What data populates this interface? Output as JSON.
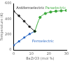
{
  "chart_data": {
    "type": "line",
    "x_label": "BaZrO3 (mol %)",
    "y_label": "Temperature (K)",
    "xlim": [
      0,
      30
    ],
    "xticks": [
      0,
      10,
      20,
      30
    ],
    "ylim": [
      0,
      600
    ],
    "yticks": [
      0,
      200,
      400,
      600
    ],
    "grid": false,
    "series": [
      {
        "color": "#1a1a1a",
        "marker": "diamond",
        "line_style": "solid",
        "x": [
          0,
          3,
          6,
          9,
          12
        ],
        "values": [
          500,
          440,
          370,
          300,
          240
        ]
      },
      {
        "color": "#3aa83a",
        "marker": "circle",
        "line_style": "solid",
        "x": [
          12,
          15,
          18,
          21,
          24,
          27,
          30
        ],
        "values": [
          240,
          420,
          470,
          490,
          500,
          505,
          510
        ]
      },
      {
        "color": "#1f5fbf",
        "marker": "triangle",
        "line_style": "solid",
        "x": [
          0,
          3,
          6,
          9,
          12
        ],
        "values": [
          60,
          110,
          160,
          205,
          240
        ]
      }
    ],
    "annotations": [
      {
        "text": "Antiferroelectric",
        "color": "#1a1a1a"
      },
      {
        "text": "Paraelectric",
        "color": "#3aa83a"
      },
      {
        "text": "Ferroelectric",
        "color": "#1f5fbf"
      }
    ]
  }
}
